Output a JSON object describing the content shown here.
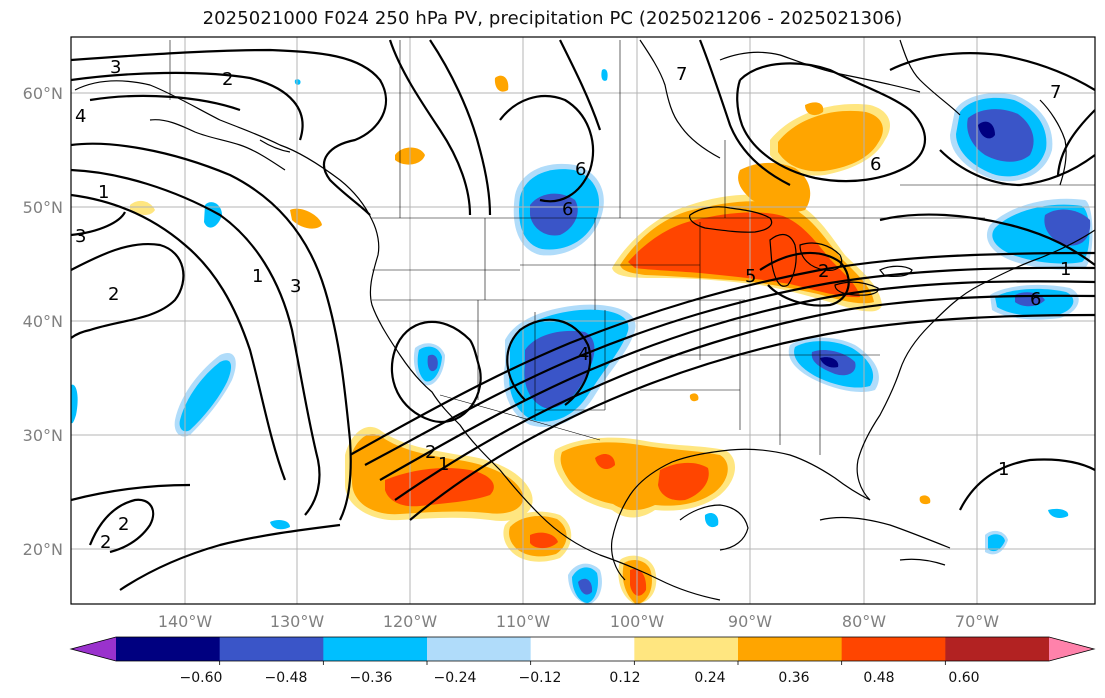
{
  "title": "2025021000 F024 250 hPa PV, precipitation PC (2025021206 - 2025021306)",
  "map": {
    "lat_labels": [
      "60°N",
      "50°N",
      "40°N",
      "30°N",
      "20°N"
    ],
    "lon_labels": [
      "140°W",
      "130°W",
      "120°W",
      "110°W",
      "100°W",
      "90°W",
      "80°W",
      "70°W"
    ],
    "contour_labels": [
      "3",
      "2",
      "4",
      "1",
      "3",
      "2",
      "1",
      "3",
      "6",
      "6",
      "7",
      "6",
      "7",
      "5",
      "6",
      "2",
      "4",
      "1",
      "2",
      "1",
      "2",
      "2",
      "1"
    ],
    "gridlines": true
  },
  "colorbar": {
    "tick_labels": [
      "−0.60",
      "−0.48",
      "−0.36",
      "−0.24",
      "−0.12",
      "0.12",
      "0.24",
      "0.36",
      "0.48",
      "0.60"
    ],
    "colors": [
      "#9a32cd",
      "#000080",
      "#3a55c8",
      "#00bfff",
      "#b0dcfa",
      "#ffffff",
      "#ffe680",
      "#ffa500",
      "#ff4500",
      "#b22222",
      "#ff82ab"
    ]
  }
}
